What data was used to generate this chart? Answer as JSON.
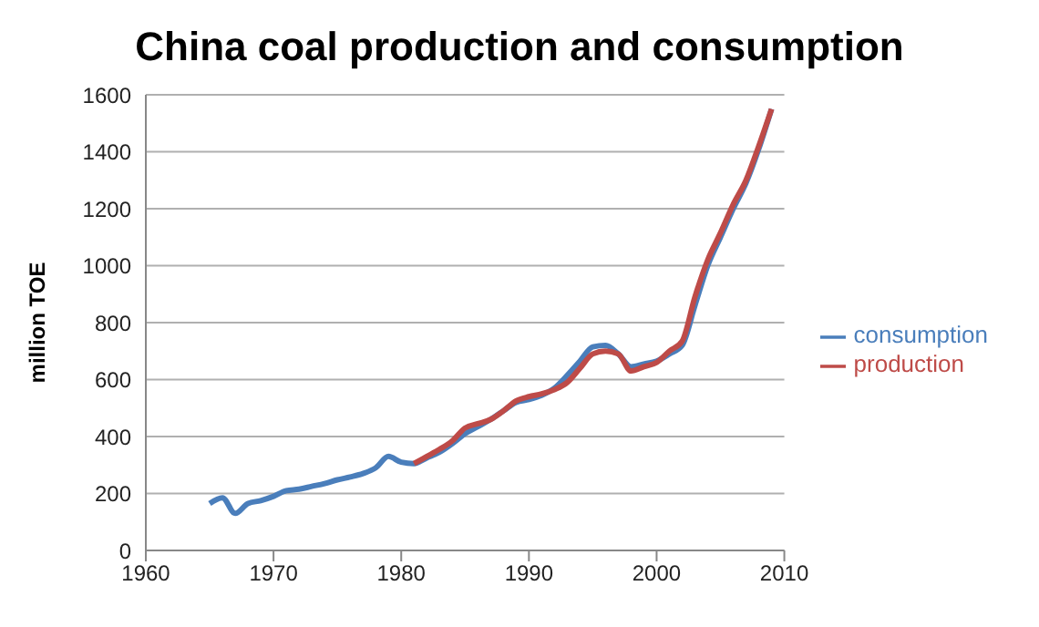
{
  "chart_data": {
    "type": "line",
    "title": "China coal production and consumption",
    "ylabel": "million TOE",
    "xlim": [
      1960,
      2010
    ],
    "xticks": [
      1960,
      1970,
      1980,
      1990,
      2000,
      2010
    ],
    "ylim": [
      0,
      1600
    ],
    "yticks": [
      0,
      200,
      400,
      600,
      800,
      1000,
      1200,
      1400,
      1600
    ],
    "grid": "y",
    "legend": "right",
    "marker": "none",
    "series": [
      {
        "name": "consumption",
        "color": "#4a7ebb",
        "x": [
          1965,
          1966,
          1967,
          1968,
          1969,
          1970,
          1971,
          1972,
          1973,
          1974,
          1975,
          1976,
          1977,
          1978,
          1979,
          1980,
          1981,
          1982,
          1983,
          1984,
          1985,
          1986,
          1987,
          1988,
          1989,
          1990,
          1991,
          1992,
          1993,
          1994,
          1995,
          1996,
          1997,
          1998,
          1999,
          2000,
          2001,
          2002,
          2003,
          2004,
          2005,
          2006,
          2007,
          2008,
          2009
        ],
        "values": [
          165,
          185,
          130,
          165,
          175,
          190,
          210,
          215,
          225,
          235,
          248,
          258,
          270,
          290,
          330,
          310,
          305,
          325,
          345,
          375,
          410,
          435,
          460,
          490,
          520,
          530,
          545,
          570,
          615,
          665,
          715,
          720,
          690,
          645,
          655,
          665,
          690,
          720,
          860,
          1000,
          1100,
          1200,
          1290,
          1410,
          1550
        ]
      },
      {
        "name": "production",
        "color": "#be4b48",
        "x": [
          1981,
          1982,
          1983,
          1984,
          1985,
          1986,
          1987,
          1988,
          1989,
          1990,
          1991,
          1992,
          1993,
          1994,
          1995,
          1996,
          1997,
          1998,
          1999,
          2000,
          2001,
          2002,
          2003,
          2004,
          2005,
          2006,
          2007,
          2008,
          2009
        ],
        "values": [
          305,
          330,
          355,
          385,
          430,
          445,
          460,
          490,
          525,
          540,
          550,
          565,
          590,
          640,
          690,
          700,
          690,
          630,
          645,
          660,
          700,
          735,
          890,
          1020,
          1115,
          1215,
          1300,
          1420,
          1550
        ]
      }
    ]
  }
}
